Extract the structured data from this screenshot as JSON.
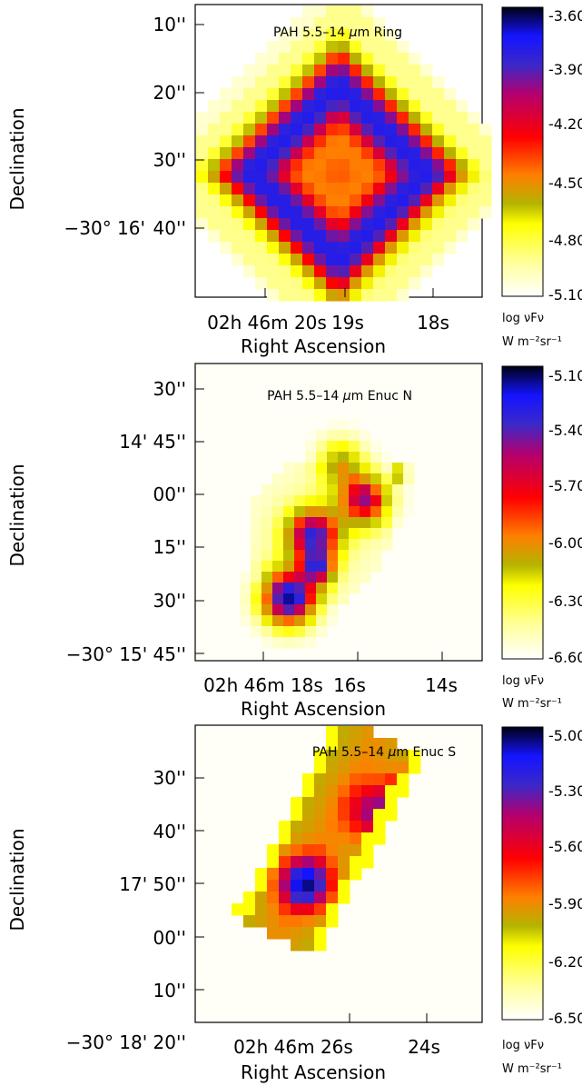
{
  "figure": {
    "panels": [
      {
        "id": "ring",
        "title": "PAH 5.5–14 μm Ring",
        "title_parts": {
          "prefix": "PAH 5.5–14 ",
          "mu": "μ",
          "suffix": "m Ring"
        },
        "ylabel": "Declination",
        "xlabel": "Right Ascension",
        "y_ticks": [
          {
            "label": "10''",
            "prefix": ""
          },
          {
            "label": "20''",
            "prefix": ""
          },
          {
            "label": "30''",
            "prefix": ""
          },
          {
            "label": "40''",
            "prefix": "−30° 16'"
          }
        ],
        "x_ticks": [
          "02h 46m 20s",
          "19s",
          "18s"
        ],
        "colorbar": {
          "ticks": [
            "-3.60",
            "-3.90",
            "-4.20",
            "-4.50",
            "-4.80",
            "-5.10"
          ],
          "label_line1": "log νFν",
          "label_line2": "W m⁻²sr⁻¹"
        },
        "range": [
          -5.1,
          -3.6
        ]
      },
      {
        "id": "enuc-n",
        "title": "PAH 5.5–14 μm Enuc N",
        "title_parts": {
          "prefix": "PAH 5.5–14 ",
          "mu": "μ",
          "suffix": "m Enuc N"
        },
        "ylabel": "Declination",
        "xlabel": "Right Ascension",
        "y_ticks": [
          {
            "label": "30''",
            "prefix": ""
          },
          {
            "label": "14' 45''",
            "prefix": ""
          },
          {
            "label": "00''",
            "prefix": ""
          },
          {
            "label": "15''",
            "prefix": ""
          },
          {
            "label": "30''",
            "prefix": ""
          },
          {
            "label": "15' 45''",
            "prefix": "−30°"
          }
        ],
        "x_ticks": [
          "02h 46m 18s",
          "16s",
          "14s"
        ],
        "colorbar": {
          "ticks": [
            "-5.10",
            "-5.40",
            "-5.70",
            "-6.00",
            "-6.30",
            "-6.60"
          ],
          "label_line1": "log νFν",
          "label_line2": "W m⁻²sr⁻¹"
        },
        "range": [
          -6.6,
          -5.1
        ]
      },
      {
        "id": "enuc-s",
        "title": "PAH 5.5–14 μm Enuc S",
        "title_parts": {
          "prefix": "PAH 5.5–14 ",
          "mu": "μ",
          "suffix": "m Enuc S"
        },
        "ylabel": "Declination",
        "xlabel": "Right Ascension",
        "y_ticks": [
          {
            "label": "30''",
            "prefix": ""
          },
          {
            "label": "40''",
            "prefix": ""
          },
          {
            "label": "17' 50''",
            "prefix": ""
          },
          {
            "label": "00''",
            "prefix": ""
          },
          {
            "label": "10''",
            "prefix": ""
          },
          {
            "label": "18' 20''",
            "prefix": "−30°"
          }
        ],
        "x_ticks": [
          "02h 46m 26s",
          "24s"
        ],
        "colorbar": {
          "ticks": [
            "-5.00",
            "-5.30",
            "-5.60",
            "-5.90",
            "-6.20",
            "-6.50"
          ],
          "label_line1": "log νFν",
          "label_line2": "W m⁻²sr⁻¹"
        },
        "range": [
          -6.5,
          -5.0
        ]
      }
    ],
    "colormap": [
      "#ffffff",
      "#ffff99",
      "#ffff00",
      "#b4b400",
      "#ff7f00",
      "#ff0000",
      "#b4006e",
      "#3c28c8",
      "#1414ff",
      "#000014"
    ]
  }
}
